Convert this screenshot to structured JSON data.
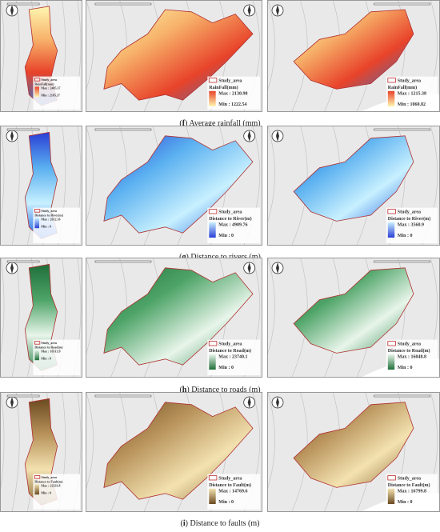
{
  "rows": [
    {
      "caption": {
        "label": "f",
        "text": "Average rainfall (mm)"
      },
      "panels": [
        {
          "legend": {
            "study": "Study_area",
            "title": "RainFall(mm)",
            "max": "Max : 2405.37",
            "min": "Min : 2105.37"
          }
        },
        {
          "legend": {
            "study": "Study_area",
            "title": "RainFall(mm)",
            "max": "Max : 2130.98",
            "min": "Min : 1222.54"
          }
        },
        {
          "legend": {
            "study": "Study_area",
            "title": "RainFall(mm)",
            "max": "Max : 1215.38",
            "min": "Min : 1060.82"
          }
        }
      ]
    },
    {
      "caption": {
        "label": "g",
        "text": "Distance to rivers (m)"
      },
      "panels": [
        {
          "legend": {
            "study": "Study_area",
            "title": "Distance to River(m)",
            "max": "Max : 2612.16",
            "min": "Min : 0"
          }
        },
        {
          "legend": {
            "study": "Study_area",
            "title": "Distance to River(m)",
            "max": "Max : 4909.76",
            "min": "Min : 0"
          }
        },
        {
          "legend": {
            "study": "Study_area",
            "title": "Distance to River(m)",
            "max": "Max : 3560.9",
            "min": "Min : 0"
          }
        }
      ]
    },
    {
      "caption": {
        "label": "h",
        "text": "Distance to roads (m)"
      },
      "panels": [
        {
          "legend": {
            "study": "Study_area",
            "title": "Distance to Road(m)",
            "max": "Max : 16513.9",
            "min": "Min : 0"
          }
        },
        {
          "legend": {
            "study": "Study_area",
            "title": "Distance to Road(m)",
            "max": "Max : 23740.1",
            "min": "Min : 0"
          }
        },
        {
          "legend": {
            "study": "Study_area",
            "title": "Distance to Road(m)",
            "max": "Max : 16048.8",
            "min": "Min : 0"
          }
        }
      ]
    },
    {
      "caption": {
        "label": "i",
        "text": "Distance to faults (m)"
      },
      "panels": [
        {
          "legend": {
            "study": "Study_area",
            "title": "Distance to Fault(m)",
            "max": "Max : 22333.8",
            "min": "Min : 0"
          }
        },
        {
          "legend": {
            "study": "Study_area",
            "title": "Distance to Fault(m)",
            "max": "Max : 14769.6",
            "min": "Min : 0"
          }
        },
        {
          "legend": {
            "study": "Study_area",
            "title": "Distance to Fault(m)",
            "max": "Max : 16799.8",
            "min": "Min : 0"
          }
        }
      ]
    }
  ]
}
